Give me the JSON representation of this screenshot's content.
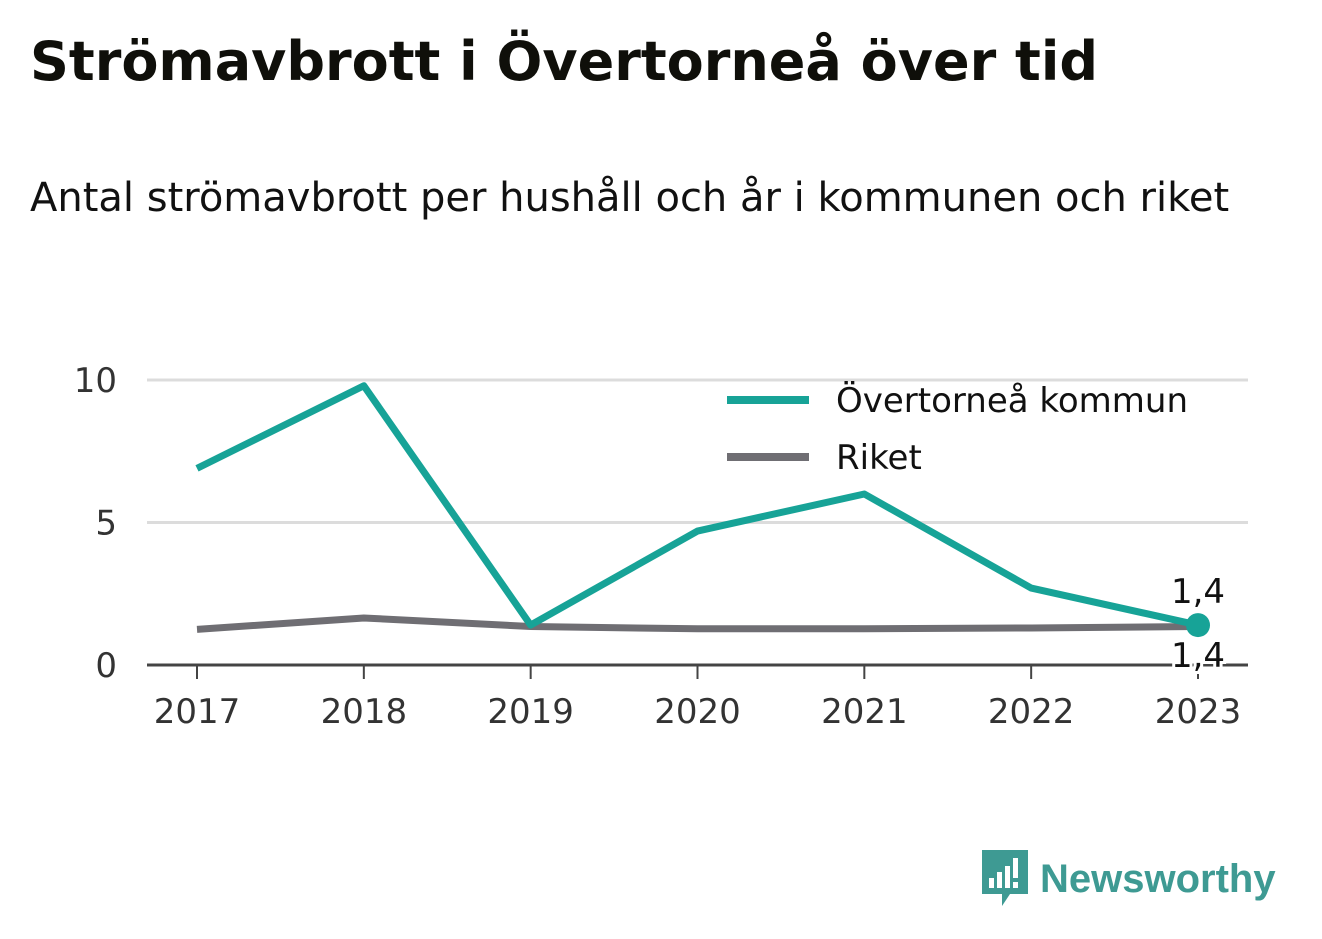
{
  "header": {
    "title": "Strömavbrott i Övertorneå över tid",
    "subtitle": "Antal strömavbrott per hushåll och år i kommunen och riket"
  },
  "brand": {
    "name": "Newsworthy",
    "icon": "newsworthy-logo-icon",
    "color": "#3e9a93"
  },
  "colors": {
    "kommun": "#17a397",
    "riket": "#6f6e73",
    "grid": "#dcdcdc",
    "axis": "#444444"
  },
  "chart_data": {
    "type": "line",
    "x": [
      "2017",
      "2018",
      "2019",
      "2020",
      "2021",
      "2022",
      "2023"
    ],
    "series": [
      {
        "name": "Övertorneå kommun",
        "values": [
          6.9,
          9.8,
          1.4,
          4.7,
          6.0,
          2.7,
          1.4
        ],
        "color": "#17a397",
        "end_label": "1,4"
      },
      {
        "name": "Riket",
        "values": [
          1.25,
          1.65,
          1.35,
          1.27,
          1.27,
          1.3,
          1.35
        ],
        "color": "#6f6e73",
        "end_label": "1,4"
      }
    ],
    "ylim": [
      0,
      10
    ],
    "yticks": [
      0,
      5,
      10
    ],
    "ytick_labels": [
      "0",
      "5",
      "10"
    ],
    "grid": true,
    "legend": "top-right"
  }
}
